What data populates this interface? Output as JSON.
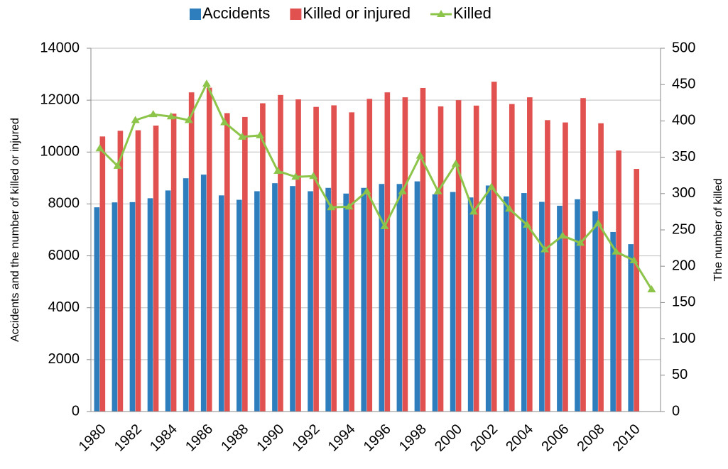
{
  "chart_data": {
    "type": "bar-line",
    "y_label": "Accidents and the number of killed or injured",
    "y2_label": "The number of killed",
    "categories": [
      "1980",
      null,
      "1982",
      null,
      "1984",
      null,
      "1986",
      null,
      "1988",
      null,
      "1990",
      null,
      "1992",
      null,
      "1994",
      null,
      "1996",
      null,
      "1998",
      null,
      "2000",
      null,
      "2002",
      null,
      "2004",
      null,
      "2006",
      null,
      "2008",
      null,
      "2010",
      null
    ],
    "series": [
      {
        "name": "Accidents",
        "color": "#2e7dbd",
        "kind": "bar",
        "values": [
          7870,
          8060,
          8070,
          8220,
          8520,
          8990,
          9130,
          8330,
          8160,
          8490,
          8800,
          8690,
          8490,
          8620,
          8400,
          8620,
          8770,
          8770,
          8870,
          8370,
          8460,
          8250,
          8710,
          8290,
          8420,
          8080,
          7930,
          8180,
          7720,
          6920,
          6450,
          null
        ]
      },
      {
        "name": "Killed or injured",
        "color": "#e0514f",
        "kind": "bar",
        "values": [
          10600,
          10820,
          10840,
          11020,
          11480,
          12300,
          12480,
          11500,
          11350,
          11880,
          12200,
          12030,
          11740,
          11800,
          11530,
          12050,
          12300,
          12110,
          12470,
          11760,
          12000,
          11790,
          12710,
          11850,
          12110,
          11230,
          11140,
          12080,
          11110,
          10060,
          9350,
          null
        ]
      },
      {
        "name": "Killed",
        "color": "#8dc44a",
        "kind": "line",
        "axis": "y2",
        "values": [
          362,
          338,
          401,
          409,
          406,
          401,
          451,
          398,
          378,
          380,
          331,
          323,
          324,
          281,
          282,
          303,
          255,
          303,
          352,
          303,
          341,
          275,
          309,
          279,
          257,
          223,
          242,
          232,
          259,
          220,
          208,
          168
        ]
      }
    ],
    "ylim": [
      0,
      14000
    ],
    "yticks": [
      0,
      2000,
      4000,
      6000,
      8000,
      10000,
      12000,
      14000
    ],
    "y2lim": [
      0,
      500
    ],
    "y2ticks": [
      0,
      50,
      100,
      150,
      200,
      250,
      300,
      350,
      400,
      450,
      500
    ],
    "grid": true,
    "legend": "top"
  }
}
